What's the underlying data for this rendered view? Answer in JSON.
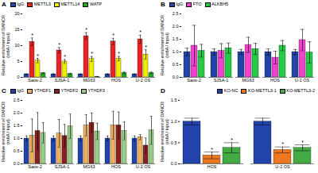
{
  "chart_data": [
    {
      "type": "bar",
      "title": "A",
      "ylabel": "Relative enrichment of DANCR\n(m6A / Input)",
      "categories": [
        "Saos-2",
        "SJSA-1",
        "MG63",
        "HOS",
        "U-2 OS"
      ],
      "series": [
        {
          "name": "IgG",
          "color": "#2244aa",
          "values": [
            1.0,
            1.0,
            1.0,
            1.0,
            1.0
          ],
          "errors": [
            0.12,
            0.1,
            0.1,
            0.1,
            0.1
          ]
        },
        {
          "name": "METTL3",
          "color": "#ee2222",
          "values": [
            11.2,
            8.5,
            13.0,
            11.3,
            12.0
          ],
          "errors": [
            1.2,
            0.9,
            1.1,
            1.0,
            1.3
          ]
        },
        {
          "name": "METTL14",
          "color": "#eeee00",
          "values": [
            5.3,
            5.0,
            5.8,
            5.9,
            7.2
          ],
          "errors": [
            0.7,
            0.6,
            0.8,
            0.7,
            1.5
          ]
        },
        {
          "name": "WATP",
          "color": "#22aa22",
          "values": [
            1.3,
            1.1,
            0.2,
            1.4,
            1.4
          ],
          "errors": [
            0.2,
            0.2,
            0.1,
            0.3,
            0.3
          ]
        }
      ],
      "annotations": [
        {
          "text": "*",
          "series": "METTL3",
          "category": "Saos-2"
        },
        {
          "text": "*",
          "series": "METTL3",
          "category": "SJSA-1"
        },
        {
          "text": "*",
          "series": "METTL3",
          "category": "MG63"
        },
        {
          "text": "*",
          "series": "METTL3",
          "category": "HOS"
        },
        {
          "text": "*",
          "series": "METTL3",
          "category": "U-2 OS"
        },
        {
          "text": "*",
          "series": "METTL14",
          "category": "Saos-2"
        },
        {
          "text": "*",
          "series": "METTL14",
          "category": "SJSA-1"
        },
        {
          "text": "*",
          "series": "METTL14",
          "category": "MG63"
        },
        {
          "text": "*",
          "series": "METTL14",
          "category": "HOS"
        },
        {
          "text": "*",
          "series": "METTL14",
          "category": "U-2 OS"
        }
      ],
      "ylim": [
        0,
        20
      ],
      "yticks": [
        0,
        5,
        10,
        15,
        20
      ],
      "grid": false,
      "legend": "upper left"
    },
    {
      "type": "bar",
      "title": "B",
      "ylabel": "Relative enrichment of DANCR\n(m6A / Input)",
      "categories": [
        "Saos-2",
        "SJSA-1",
        "MG63",
        "HOS",
        "U-2 OS"
      ],
      "series": [
        {
          "name": "IgG",
          "color": "#2244aa",
          "values": [
            1.0,
            1.0,
            1.0,
            1.0,
            1.0
          ],
          "errors": [
            0.15,
            0.12,
            0.1,
            0.12,
            0.1
          ]
        },
        {
          "name": "FTO",
          "color": "#ee44cc",
          "values": [
            1.25,
            1.05,
            1.28,
            0.78,
            1.47
          ],
          "errors": [
            0.8,
            0.28,
            0.3,
            0.25,
            0.42
          ]
        },
        {
          "name": "ALKBH5",
          "color": "#22cc44",
          "values": [
            1.05,
            1.15,
            1.12,
            1.25,
            0.98
          ],
          "errors": [
            0.25,
            0.2,
            0.22,
            0.2,
            0.42
          ]
        }
      ],
      "ylim": [
        0,
        2.5
      ],
      "yticks": [
        {
          "value": 0,
          "label": "0.0"
        },
        0.5,
        {
          "value": 1.0,
          "label": "1.0"
        },
        1.5,
        {
          "value": 2.0,
          "label": "2.0"
        },
        2.5
      ],
      "grid": false,
      "legend": "upper left"
    },
    {
      "type": "bar",
      "title": "C",
      "ylabel": "Relative enrichment of DANCR\n(m6A / Input)",
      "categories": [
        "Saos-2",
        "SJSA-1",
        "MG63",
        "HOS",
        "U-2 OS"
      ],
      "series": [
        {
          "name": "IgG",
          "color": "#2244aa",
          "values": [
            1.0,
            1.0,
            1.0,
            1.0,
            1.0
          ],
          "errors": [
            0.1,
            0.1,
            0.1,
            0.1,
            0.1
          ]
        },
        {
          "name": "YTHDF1",
          "color": "#f0b060",
          "values": [
            1.12,
            1.2,
            1.52,
            1.52,
            1.05
          ],
          "errors": [
            0.65,
            0.55,
            0.42,
            0.55,
            0.1
          ]
        },
        {
          "name": "YTHDF2",
          "color": "#882222",
          "values": [
            1.3,
            1.1,
            1.62,
            1.52,
            0.72
          ],
          "errors": [
            0.72,
            0.45,
            0.38,
            0.52,
            0.3
          ]
        },
        {
          "name": "YTHDF3",
          "color": "#99cc88",
          "values": [
            1.22,
            1.48,
            1.28,
            1.3,
            1.32
          ],
          "errors": [
            0.4,
            0.48,
            0.32,
            0.35,
            0.55
          ]
        }
      ],
      "ylim": [
        0,
        2.5
      ],
      "yticks": [
        {
          "value": 0,
          "label": "0.0"
        },
        0.5,
        {
          "value": 1.0,
          "label": "1.0"
        },
        1.5,
        {
          "value": 2.0,
          "label": "2.0"
        },
        2.5
      ],
      "grid": false,
      "legend": "upper left"
    },
    {
      "type": "bar",
      "title": "D",
      "ylabel": "Relative enrichment of DANCR\n(m6A / Input)",
      "categories": [
        "HOS",
        "U-2 OS"
      ],
      "series": [
        {
          "name": "KO-NC",
          "color": "#2244aa",
          "values": [
            1.0,
            1.0
          ],
          "errors": [
            0.08,
            0.08
          ]
        },
        {
          "name": "KO-METTL3-1",
          "color": "#ee7722",
          "values": [
            0.2,
            0.33
          ],
          "errors": [
            0.08,
            0.07
          ]
        },
        {
          "name": "KO-METTL3-2",
          "color": "#44aa44",
          "values": [
            0.38,
            0.38
          ],
          "errors": [
            0.12,
            0.07
          ]
        }
      ],
      "annotations": [
        {
          "text": "*",
          "series": "KO-METTL3-1",
          "category": "HOS"
        },
        {
          "text": "*",
          "series": "KO-METTL3-1",
          "category": "U-2 OS"
        },
        {
          "text": "*",
          "series": "KO-METTL3-2",
          "category": "HOS"
        },
        {
          "text": "*",
          "series": "KO-METTL3-2",
          "category": "U-2 OS"
        }
      ],
      "ylim": [
        0,
        1.5
      ],
      "yticks": [
        {
          "value": 0,
          "label": "0.0"
        },
        0.5,
        {
          "value": 1.0,
          "label": "1.0"
        },
        {
          "value": 1.5,
          "label": "1.5"
        }
      ],
      "grid": false,
      "legend": "upper right"
    }
  ]
}
